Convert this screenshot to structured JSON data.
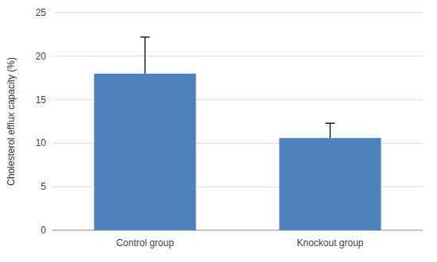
{
  "chart_data": {
    "type": "bar",
    "categories": [
      "Control group",
      "Knockout group"
    ],
    "values": [
      18.0,
      10.6
    ],
    "error_upper": [
      4.2,
      1.7
    ],
    "color": "#4F81BD",
    "ylabel": "Cholesterol efflux capacity (%)",
    "ylim": [
      0,
      25
    ],
    "yticks": [
      0,
      5,
      10,
      15,
      20,
      25
    ],
    "grid": true
  }
}
